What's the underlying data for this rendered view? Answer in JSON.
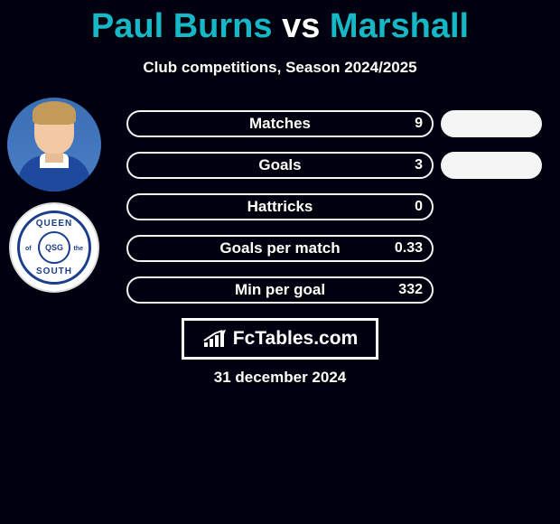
{
  "title": {
    "player1": "Paul Burns",
    "vs": "vs",
    "player2": "Marshall",
    "color_player": "#16b8c7",
    "color_vs": "#ffffff"
  },
  "subtitle": "Club competitions, Season 2024/2025",
  "player_photo": {
    "bg_gradient_top": "#3a6fb5",
    "bg_gradient_bottom": "#4a7fc5",
    "skin": "#f3c9a4",
    "hair": "#c49a5a",
    "shirt": "#1e4a9e",
    "collar": "#ffffff"
  },
  "club_crest": {
    "top_text": "QUEEN",
    "bottom_text": "SOUTH",
    "left_text": "of",
    "right_text": "the",
    "center_text": "QSG",
    "color": "#1a3e8c",
    "bg": "#ffffff"
  },
  "stats": {
    "pill_border": "#f5f5f5",
    "pill_bg": "transparent",
    "label_color": "#ffffff",
    "rows": [
      {
        "label": "Matches",
        "v1": "9",
        "fill_pct": 0,
        "right_fill": true
      },
      {
        "label": "Goals",
        "v1": "3",
        "fill_pct": 0,
        "right_fill": true
      },
      {
        "label": "Hattricks",
        "v1": "0",
        "fill_pct": 0,
        "right_fill": false
      },
      {
        "label": "Goals per match",
        "v1": "0.33",
        "fill_pct": 0,
        "right_fill": false
      },
      {
        "label": "Min per goal",
        "v1": "332",
        "fill_pct": 0,
        "right_fill": false
      }
    ],
    "right_pill_color": "#f5f5f5"
  },
  "brand": {
    "text": "FcTables.com",
    "icon_color": "#ffffff",
    "border_color": "#ffffff"
  },
  "date": "31 december 2024",
  "colors": {
    "page_bg": "#000010",
    "text": "#ffffff"
  }
}
